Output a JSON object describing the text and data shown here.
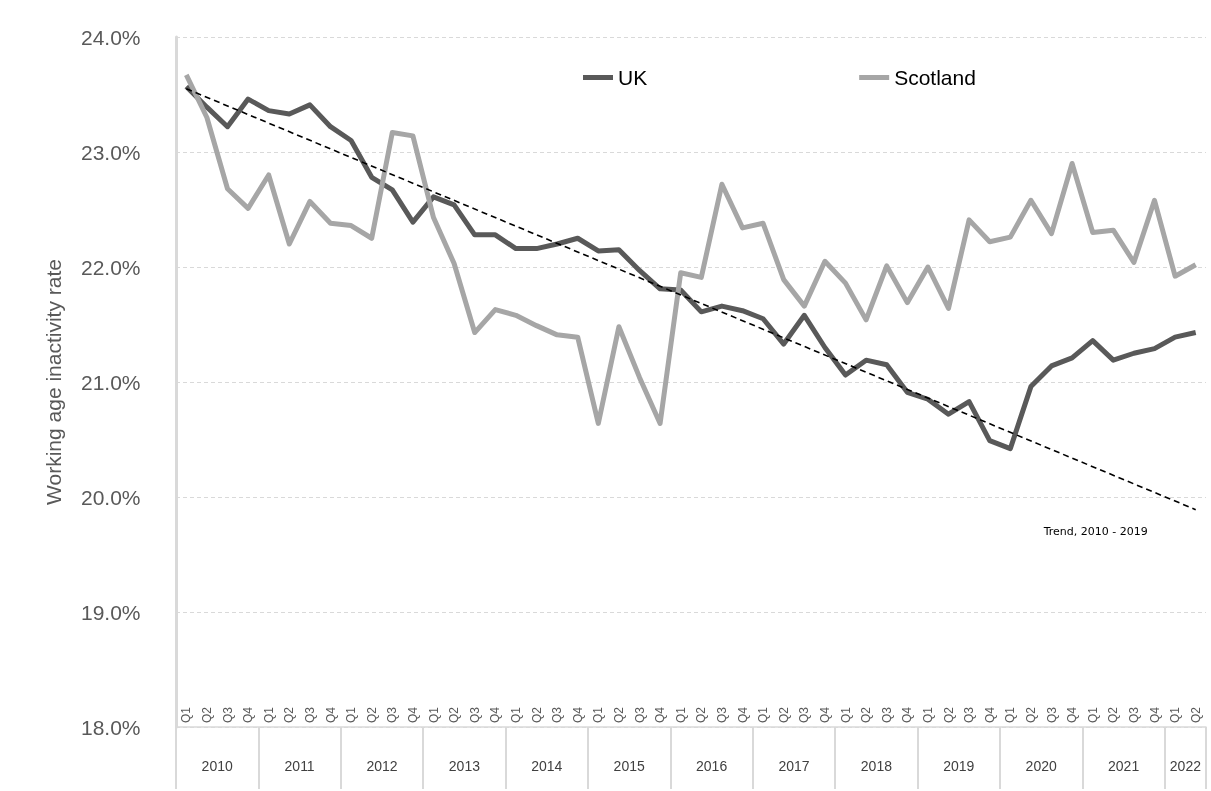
{
  "chart_data": {
    "type": "line",
    "ylabel": "Working age inactivity rate",
    "categories": [
      "Q1",
      "Q2",
      "Q3",
      "Q4",
      "Q1",
      "Q2",
      "Q3",
      "Q4",
      "Q1",
      "Q2",
      "Q3",
      "Q4",
      "Q1",
      "Q2",
      "Q3",
      "Q4",
      "Q1",
      "Q2",
      "Q3",
      "Q4",
      "Q1",
      "Q2",
      "Q3",
      "Q4",
      "Q1",
      "Q2",
      "Q3",
      "Q4",
      "Q1",
      "Q2",
      "Q3",
      "Q4",
      "Q1",
      "Q2",
      "Q3",
      "Q4",
      "Q1",
      "Q2",
      "Q3",
      "Q4",
      "Q1",
      "Q2",
      "Q3",
      "Q4",
      "Q1",
      "Q2",
      "Q3",
      "Q4",
      "Q1",
      "Q2"
    ],
    "series": [
      {
        "name": "UK",
        "color": "#595959",
        "values": [
          23.57,
          23.39,
          23.22,
          23.46,
          23.36,
          23.33,
          23.41,
          23.22,
          23.1,
          22.78,
          22.67,
          22.39,
          22.61,
          22.54,
          22.28,
          22.28,
          22.16,
          22.16,
          22.2,
          22.25,
          22.14,
          22.15,
          21.97,
          21.81,
          21.8,
          21.61,
          21.66,
          21.62,
          21.55,
          21.33,
          21.58,
          21.3,
          21.06,
          21.19,
          21.15,
          20.91,
          20.85,
          20.72,
          20.83,
          20.49,
          20.42,
          20.96,
          21.14,
          21.21,
          21.36,
          21.19,
          21.25,
          21.29,
          21.39,
          21.43
        ]
      },
      {
        "name": "Scotland",
        "color": "#a6a6a6",
        "values": [
          23.67,
          23.3,
          22.68,
          22.51,
          22.8,
          22.2,
          22.57,
          22.38,
          22.36,
          22.25,
          23.17,
          23.14,
          22.43,
          22.03,
          21.43,
          21.63,
          21.58,
          21.49,
          21.41,
          21.39,
          20.64,
          21.48,
          21.04,
          20.64,
          21.95,
          21.91,
          22.72,
          22.34,
          22.38,
          21.89,
          21.66,
          22.05,
          21.86,
          21.54,
          22.01,
          21.69,
          22.0,
          21.64,
          22.41,
          22.22,
          22.26,
          22.58,
          22.29,
          22.9,
          22.3,
          22.32,
          22.04,
          22.58,
          21.92,
          22.02
        ]
      },
      {
        "name": "Trend, 2010 - 2019",
        "color": "#000000",
        "line_style": "dashed",
        "values": [
          23.55,
          null,
          null,
          null,
          null,
          null,
          null,
          null,
          null,
          null,
          null,
          null,
          null,
          null,
          null,
          null,
          null,
          null,
          null,
          null,
          null,
          null,
          null,
          null,
          null,
          null,
          null,
          null,
          null,
          null,
          null,
          null,
          null,
          null,
          null,
          null,
          null,
          null,
          null,
          null,
          null,
          null,
          null,
          null,
          null,
          null,
          null,
          null,
          null,
          19.89
        ]
      }
    ],
    "ylim": [
      18,
      24
    ],
    "yticks": [
      {
        "value": 18,
        "label": "18.0%"
      },
      {
        "value": 19,
        "label": "19.0%"
      },
      {
        "value": 20,
        "label": "20.0%"
      },
      {
        "value": 21,
        "label": "21.0%"
      },
      {
        "value": 22,
        "label": "22.0%"
      },
      {
        "value": 23,
        "label": "23.0%"
      },
      {
        "value": 24,
        "label": "24.0%"
      }
    ],
    "grid": "y",
    "legend": "top",
    "marker": "none",
    "annotations": [
      "2010",
      "2011",
      "2012",
      "2013",
      "2014",
      "2015",
      "2016",
      "2017",
      "2018",
      "2019",
      "2020",
      "2021",
      "2022"
    ]
  }
}
